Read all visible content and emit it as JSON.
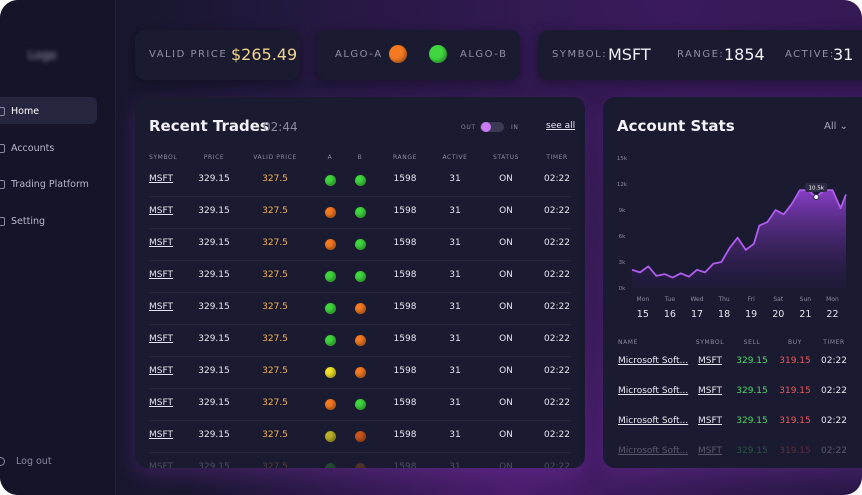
{
  "logo": "Logo",
  "nav": [
    "Home",
    "Accounts",
    "Trading Platform",
    "Setting"
  ],
  "logout": "Log out",
  "top": {
    "valid_price_label": "VALID PRICE",
    "valid_price": "$265.49",
    "algo_a": "ALGO-A",
    "algo_a_color": "#f47a22",
    "algo_b": "ALGO-B",
    "algo_b_color": "#3fd63f",
    "symbol_label": "SYMBOL:",
    "symbol": "MSFT",
    "range_label": "RANGE:",
    "range": "1854",
    "active_label": "ACTIVE:",
    "active": "31"
  },
  "trades": {
    "title": "Recent Trades",
    "time": "02:44",
    "toggle_off": "OUT",
    "toggle_on": "IN",
    "see_all": "see all",
    "columns": [
      "SYMBOL",
      "PRICE",
      "VALID PRICE",
      "A",
      "B",
      "RANGE",
      "ACTIVE",
      "STATUS",
      "TIMER"
    ],
    "rows": [
      {
        "symbol": "MSFT",
        "price": "329.15",
        "valid_price": "327.5",
        "a": "#3fd63f",
        "b": "#3fd63f",
        "range": "1598",
        "active": "31",
        "status": "ON",
        "timer": "02:22"
      },
      {
        "symbol": "MSFT",
        "price": "329.15",
        "valid_price": "327.5",
        "a": "#f47a22",
        "b": "#3fd63f",
        "range": "1598",
        "active": "31",
        "status": "ON",
        "timer": "02:22"
      },
      {
        "symbol": "MSFT",
        "price": "329.15",
        "valid_price": "327.5",
        "a": "#f47a22",
        "b": "#3fd63f",
        "range": "1598",
        "active": "31",
        "status": "ON",
        "timer": "02:22"
      },
      {
        "symbol": "MSFT",
        "price": "329.15",
        "valid_price": "327.5",
        "a": "#3fd63f",
        "b": "#3fd63f",
        "range": "1598",
        "active": "31",
        "status": "ON",
        "timer": "02:22"
      },
      {
        "symbol": "MSFT",
        "price": "329.15",
        "valid_price": "327.5",
        "a": "#3fd63f",
        "b": "#f47a22",
        "range": "1598",
        "active": "31",
        "status": "ON",
        "timer": "02:22"
      },
      {
        "symbol": "MSFT",
        "price": "329.15",
        "valid_price": "327.5",
        "a": "#3fd63f",
        "b": "#f47a22",
        "range": "1598",
        "active": "31",
        "status": "ON",
        "timer": "02:22"
      },
      {
        "symbol": "MSFT",
        "price": "329.15",
        "valid_price": "327.5",
        "a": "#f2e02a",
        "b": "#f47a22",
        "range": "1598",
        "active": "31",
        "status": "ON",
        "timer": "02:22"
      },
      {
        "symbol": "MSFT",
        "price": "329.15",
        "valid_price": "327.5",
        "a": "#f47a22",
        "b": "#3fd63f",
        "range": "1598",
        "active": "31",
        "status": "ON",
        "timer": "02:22"
      },
      {
        "symbol": "MSFT",
        "price": "329.15",
        "valid_price": "327.5",
        "a": "#b9b02a",
        "b": "#c8561c",
        "range": "1598",
        "active": "31",
        "status": "ON",
        "timer": "02:22"
      },
      {
        "symbol": "MSFT",
        "price": "329.15",
        "valid_price": "327.5",
        "a": "#3fd63f",
        "b": "#f47a22",
        "range": "1598",
        "active": "31",
        "status": "ON",
        "timer": "02:22"
      }
    ]
  },
  "stats": {
    "title": "Account Stats",
    "filter": "All",
    "chart_data": {
      "type": "area",
      "color": "#b05cf0",
      "x": [
        14.6,
        14.9,
        15.2,
        15.5,
        15.8,
        16.1,
        16.4,
        16.7,
        17.0,
        17.3,
        17.6,
        17.9,
        18.2,
        18.5,
        18.8,
        19.1,
        19.3,
        19.6,
        19.9,
        20.2,
        20.5,
        20.8,
        21.1,
        21.4,
        21.7,
        22.0,
        22.3,
        22.5
      ],
      "values": [
        2.1,
        1.8,
        2.5,
        1.4,
        1.6,
        1.2,
        1.7,
        1.3,
        2.1,
        1.8,
        2.8,
        3.0,
        4.6,
        5.8,
        4.4,
        5.1,
        7.2,
        7.6,
        9.0,
        8.5,
        9.7,
        11.3,
        11.3,
        10.5,
        11.3,
        11.3,
        9.2,
        10.8
      ],
      "xlim": [
        14.6,
        22.5
      ],
      "xticks": [
        15,
        16,
        17,
        18,
        19,
        20,
        21,
        22
      ],
      "weekdays": [
        "Mon",
        "Tue",
        "Wed",
        "Thu",
        "Fri",
        "Sat",
        "Sun",
        "Mon"
      ],
      "ylim": [
        0,
        15
      ],
      "yticks": [
        {
          "value": 15,
          "label": "15k"
        },
        {
          "value": 12,
          "label": "12k"
        },
        {
          "value": 9,
          "label": "9k"
        },
        {
          "value": 6,
          "label": "6k"
        },
        {
          "value": 3,
          "label": "3k"
        },
        {
          "value": 0,
          "label": "0k"
        }
      ],
      "annotation": {
        "x": 21.4,
        "value": 10.5,
        "label": "10.5k"
      }
    },
    "columns": [
      "NAME",
      "SYMBOL",
      "SELL",
      "BUY",
      "TIMER"
    ],
    "rows": [
      [
        "Microsoft Soft...",
        "MSFT",
        "329.15",
        "319.15",
        "02:22"
      ],
      [
        "Microsoft Soft...",
        "MSFT",
        "329.15",
        "319.15",
        "02:22"
      ],
      [
        "Microsoft Soft...",
        "MSFT",
        "329.15",
        "319.15",
        "02:22"
      ],
      [
        "Microsoft Soft...",
        "MSFT",
        "329.15",
        "319.15",
        "02:22"
      ]
    ]
  }
}
